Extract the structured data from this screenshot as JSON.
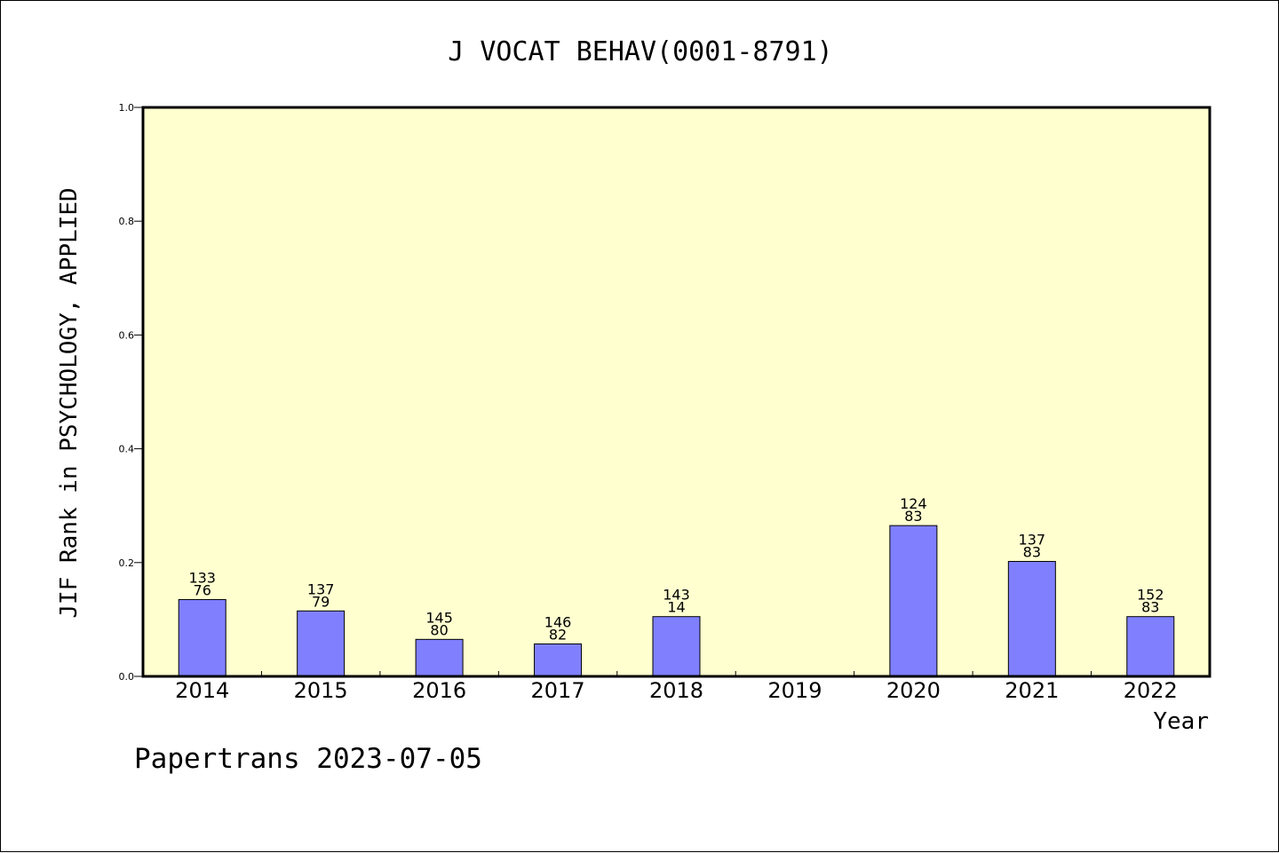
{
  "footer": {
    "text": "Papertrans 2023-07-05"
  },
  "colors": {
    "plot_background": "#ffffd0",
    "bar_fill": "#8080ff",
    "axis": "#000000"
  },
  "chart_data": {
    "type": "bar",
    "title": "J VOCAT BEHAV(0001-8791)",
    "xlabel": "Year",
    "ylabel": "JIF Rank in PSYCHOLOGY, APPLIED",
    "ylim": [
      0,
      1.0
    ],
    "yticks": [
      "0.0",
      "0.2",
      "0.4",
      "0.6",
      "0.8",
      "1.0"
    ],
    "grid": false,
    "categories": [
      "2014",
      "2015",
      "2016",
      "2017",
      "2018",
      "2019",
      "2020",
      "2021",
      "2022"
    ],
    "values": [
      0.135,
      0.115,
      0.065,
      0.057,
      0.105,
      null,
      0.265,
      0.202,
      0.105
    ],
    "label_top": [
      "133",
      "137",
      "145",
      "146",
      "143",
      "",
      "124",
      "137",
      "152"
    ],
    "label_bottom": [
      "76",
      "79",
      "80",
      "82",
      "14",
      "",
      "83",
      "83",
      "83"
    ]
  }
}
